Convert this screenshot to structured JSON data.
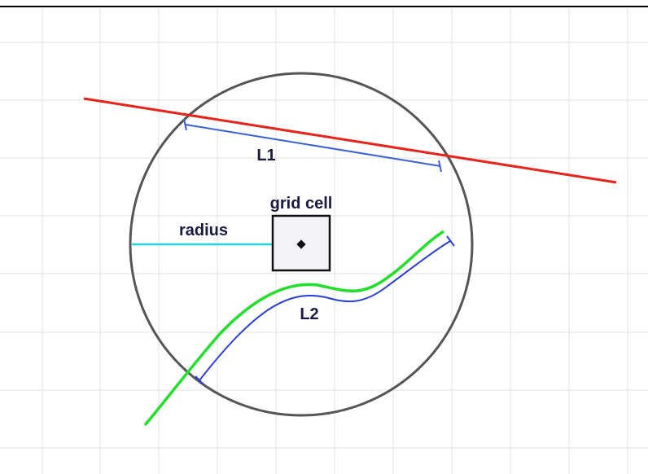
{
  "labels": {
    "l1": "L1",
    "grid_cell": "grid cell",
    "radius": "radius",
    "l2": "L2"
  }
}
